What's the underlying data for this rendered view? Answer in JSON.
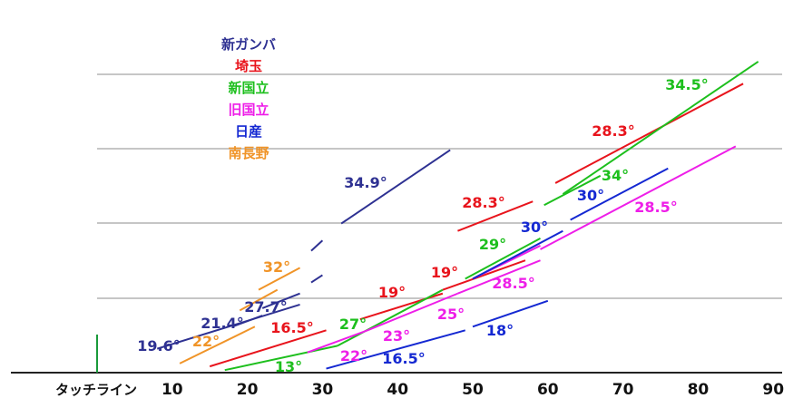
{
  "colors": {
    "new_gamba": "#2e3192",
    "saitama": "#e8141c",
    "new_national": "#1dbf1d",
    "old_national": "#ee1ee8",
    "nissan": "#1428d2",
    "minami_nagano": "#f09428",
    "gridline": "#b4b4b4",
    "axis": "#222222",
    "touchline_marker": "#1a9a3a"
  },
  "legend": [
    {
      "label": "新ガンバ",
      "series": "new_gamba"
    },
    {
      "label": "埼玉",
      "series": "saitama"
    },
    {
      "label": "新国立",
      "series": "new_national"
    },
    {
      "label": "旧国立",
      "series": "old_national"
    },
    {
      "label": "日産",
      "series": "nissan"
    },
    {
      "label": "南長野",
      "series": "minami_nagano"
    }
  ],
  "chart_data": {
    "type": "line",
    "x_axis": {
      "ticks": [
        10,
        20,
        30,
        40,
        50,
        60,
        70,
        80,
        90
      ],
      "origin_label": "タッチライン",
      "range": [
        0,
        90
      ]
    },
    "grid": true,
    "legend_position": "top-left",
    "series": [
      {
        "key": "new_gamba",
        "name": "新ガンバ",
        "segments": [
          {
            "x": [
              8,
              27
            ],
            "y": [
              3,
              9
            ],
            "label": "19.6°"
          },
          {
            "x": [
              18,
              22
            ],
            "y": [
              6,
              7.5
            ],
            "label": "21.4°"
          },
          {
            "x": [
              22,
              27
            ],
            "y": [
              8.5,
              10.5
            ],
            "label": "27.7°"
          },
          {
            "x": [
              28.5,
              30
            ],
            "y": [
              12,
              13
            ],
            "label": ""
          },
          {
            "x": [
              28.5,
              30
            ],
            "y": [
              16.3,
              17.7
            ],
            "label": ""
          },
          {
            "x": [
              32.5,
              47
            ],
            "y": [
              20,
              30
            ],
            "label": "34.9°"
          }
        ]
      },
      {
        "key": "saitama",
        "name": "埼玉",
        "segments": [
          {
            "x": [
              15,
              30.5
            ],
            "y": [
              0.6,
              5.5
            ],
            "label": "16.5°"
          },
          {
            "x": [
              35,
              46
            ],
            "y": [
              7,
              10.5
            ],
            "label": "19°"
          },
          {
            "x": [
              46,
              57
            ],
            "y": [
              11,
              15
            ],
            "label": "19°"
          },
          {
            "x": [
              48,
              58
            ],
            "y": [
              19,
              23
            ],
            "label": "28.3°"
          },
          {
            "x": [
              61,
              86
            ],
            "y": [
              25.5,
              39
            ],
            "label": "28.3°"
          }
        ]
      },
      {
        "key": "new_national",
        "name": "新国立",
        "segments": [
          {
            "x": [
              17,
              32
            ],
            "y": [
              0.1,
              3.4
            ],
            "label": "13°"
          },
          {
            "x": [
              32,
              46
            ],
            "y": [
              3.4,
              11
            ],
            "label": "27°"
          },
          {
            "x": [
              49,
              59
            ],
            "y": [
              12.5,
              18
            ],
            "label": "29°"
          },
          {
            "x": [
              59.5,
              67
            ],
            "y": [
              22.5,
              26.5
            ],
            "label": "34°"
          },
          {
            "x": [
              62,
              88
            ],
            "y": [
              24,
              42
            ],
            "label": "34.5°"
          }
        ]
      },
      {
        "key": "old_national",
        "name": "旧国立",
        "segments": [
          {
            "x": [
              28,
              36
            ],
            "y": [
              2.5,
              5.5
            ],
            "label": "22°"
          },
          {
            "x": [
              36,
              48
            ],
            "y": [
              5.5,
              10.5
            ],
            "label": "23°"
          },
          {
            "x": [
              48,
              59
            ],
            "y": [
              10.5,
              15
            ],
            "label": "25°"
          },
          {
            "x": [
              50,
              59
            ],
            "y": [
              12.5,
              17
            ],
            "label": "28.5°"
          },
          {
            "x": [
              59,
              85
            ],
            "y": [
              16.5,
              30.5
            ],
            "label": "28.5°"
          }
        ]
      },
      {
        "key": "nissan",
        "name": "日産",
        "segments": [
          {
            "x": [
              30.5,
              49
            ],
            "y": [
              0.3,
              5.5
            ],
            "label": "16.5°"
          },
          {
            "x": [
              50,
              60
            ],
            "y": [
              6,
              9.5
            ],
            "label": "18°"
          },
          {
            "x": [
              50,
              62
            ],
            "y": [
              12.5,
              19
            ],
            "label": "30°"
          },
          {
            "x": [
              63,
              76
            ],
            "y": [
              20.5,
              27.5
            ],
            "label": "30°"
          }
        ]
      },
      {
        "key": "minami_nagano",
        "name": "南長野",
        "segments": [
          {
            "x": [
              11,
              21
            ],
            "y": [
              1,
              6
            ],
            "label": "22°"
          },
          {
            "x": [
              19,
              24
            ],
            "y": [
              8.2,
              11
            ],
            "label": ""
          },
          {
            "x": [
              21.5,
              27
            ],
            "y": [
              11,
              14
            ],
            "label": "32°"
          }
        ]
      }
    ]
  }
}
